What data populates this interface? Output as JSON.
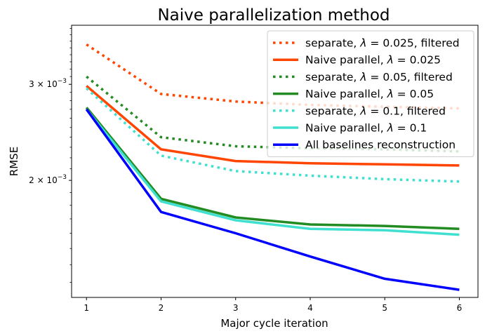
{
  "chart_data": {
    "type": "line",
    "title": "Naive parallelization method",
    "xlabel": "Major cycle iteration",
    "ylabel": "RMSE",
    "x": [
      1,
      2,
      3,
      4,
      5,
      6
    ],
    "xticks": [
      "1",
      "2",
      "3",
      "4",
      "5",
      "6"
    ],
    "xlim": [
      0.8,
      6.25
    ],
    "yscale": "log",
    "ylim": [
      0.00122,
      0.00385
    ],
    "yticks": [
      {
        "value": 0.003,
        "base": "3 × 10",
        "exp": "−3"
      },
      {
        "value": 0.002,
        "base": "2 × 10",
        "exp": "−3"
      }
    ],
    "legend_position": "upper right",
    "grid": false,
    "series": [
      {
        "name_prefix": "separate, ",
        "lambda": "0.025",
        "name_suffix": ", filtered",
        "color": "#ff4500",
        "style": "dotted",
        "values": [
          0.00355,
          0.00288,
          0.00279,
          0.00275,
          0.00273,
          0.00271
        ]
      },
      {
        "name_prefix": "Naive parallel, ",
        "lambda": "0.025",
        "name_suffix": "",
        "color": "#ff4500",
        "style": "solid",
        "values": [
          0.00298,
          0.00228,
          0.00217,
          0.00215,
          0.00214,
          0.00213
        ]
      },
      {
        "name_prefix": "separate, ",
        "lambda": "0.05",
        "name_suffix": ", filtered",
        "color": "#228b22",
        "style": "dotted",
        "values": [
          0.0031,
          0.0024,
          0.00231,
          0.00229,
          0.00228,
          0.00226
        ]
      },
      {
        "name_prefix": "Naive parallel, ",
        "lambda": "0.05",
        "name_suffix": "",
        "color": "#228b22",
        "style": "solid",
        "values": [
          0.00272,
          0.00185,
          0.00171,
          0.00166,
          0.00165,
          0.00163
        ]
      },
      {
        "name_prefix": "separate, ",
        "lambda": "0.1",
        "name_suffix": ", filtered",
        "color": "#40e0d0",
        "style": "dotted",
        "values": [
          0.00295,
          0.00222,
          0.00208,
          0.00204,
          0.00201,
          0.00199
        ]
      },
      {
        "name_prefix": "Naive parallel, ",
        "lambda": "0.1",
        "name_suffix": "",
        "color": "#40e0d0",
        "style": "solid",
        "values": [
          0.0027,
          0.00183,
          0.00169,
          0.00163,
          0.00162,
          0.00159
        ]
      },
      {
        "name_prefix": "All baselines reconstruction",
        "lambda": "",
        "name_suffix": "",
        "color": "#0000ff",
        "style": "solid",
        "values": [
          0.0027,
          0.00175,
          0.0016,
          0.00145,
          0.00132,
          0.00126
        ]
      }
    ]
  }
}
